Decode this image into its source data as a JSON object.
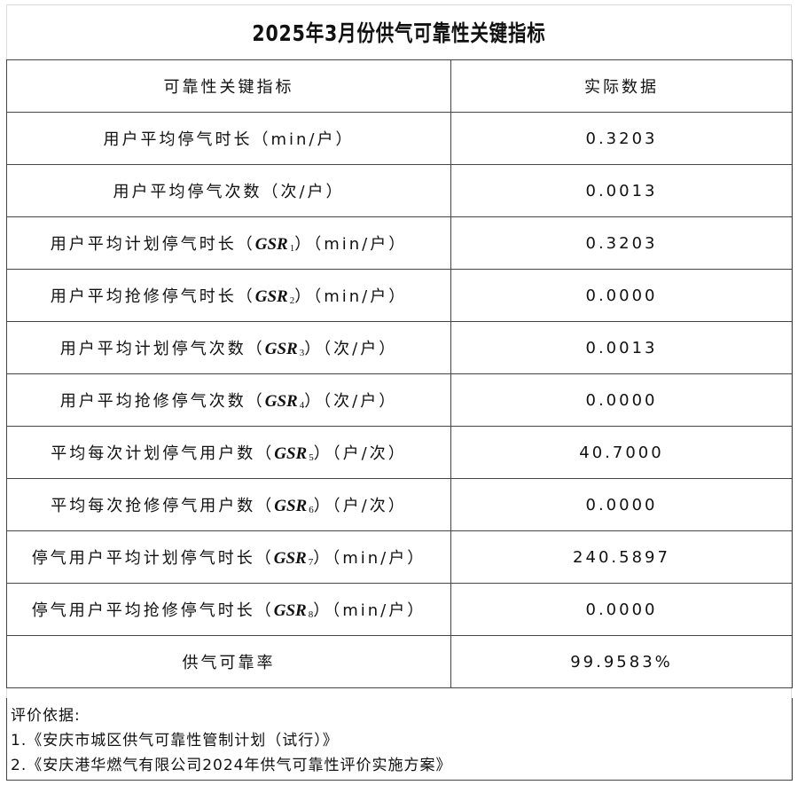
{
  "title": "2025年3月份供气可靠性关键指标",
  "headers": [
    "可靠性关键指标",
    "实际数据"
  ],
  "rows": [
    {
      "prefix": "用户平均停气时长（min/户）",
      "code": "",
      "sub": "",
      "suffix": "",
      "value": "0.3203"
    },
    {
      "prefix": "用户平均停气次数（次/户）",
      "code": "",
      "sub": "",
      "suffix": "",
      "value": "0.0013"
    },
    {
      "prefix": "用户平均计划停气时长（",
      "code": "GSR",
      "sub": "1",
      "suffix": "）（min/户）",
      "value": "0.3203"
    },
    {
      "prefix": "用户平均抢修停气时长（",
      "code": "GSR",
      "sub": "2",
      "suffix": "）（min/户）",
      "value": "0.0000"
    },
    {
      "prefix": "用户平均计划停气次数（",
      "code": "GSR",
      "sub": "3",
      "suffix": "）（次/户）",
      "value": "0.0013"
    },
    {
      "prefix": "用户平均抢修停气次数（",
      "code": "GSR",
      "sub": "4",
      "suffix": "）（次/户）",
      "value": "0.0000"
    },
    {
      "prefix": "平均每次计划停气用户数（",
      "code": "GSR",
      "sub": "5",
      "suffix": "）（户/次）",
      "value": "40.7000"
    },
    {
      "prefix": "平均每次抢修停气用户数（",
      "code": "GSR",
      "sub": "6",
      "suffix": "）（户/次）",
      "value": "0.0000"
    },
    {
      "prefix": "停气用户平均计划停气时长（",
      "code": "GSR",
      "sub": "7",
      "suffix": "）（min/户）",
      "value": "240.5897"
    },
    {
      "prefix": "停气用户平均抢修停气时长（",
      "code": "GSR",
      "sub": "8",
      "suffix": "）（min/户）",
      "value": "0.0000"
    },
    {
      "prefix": "供气可靠率",
      "code": "",
      "sub": "",
      "suffix": "",
      "value": "99.9583%"
    }
  ],
  "notes": {
    "heading": "评价依据:",
    "items": [
      "1.《安庆市城区供气可靠性管制计划（试行）》",
      "2.《安庆港华燃气有限公司2024年供气可靠性评价实施方案》"
    ]
  }
}
